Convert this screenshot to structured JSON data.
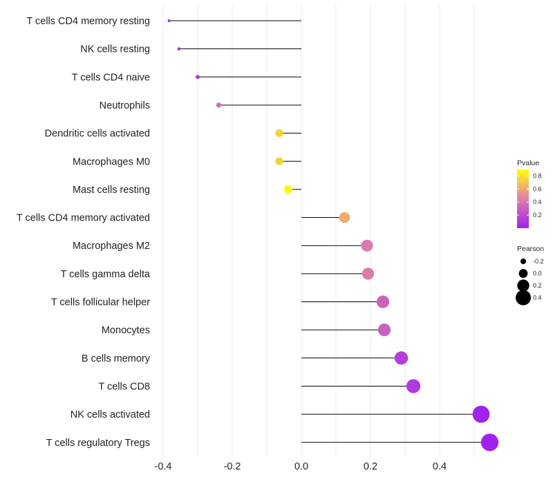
{
  "chart_data": {
    "type": "lollipop",
    "title": "",
    "xlabel": "",
    "ylabel": "",
    "xlim": [
      -0.42,
      0.56
    ],
    "x_ticks": [
      -0.4,
      -0.2,
      0.0,
      0.2,
      0.4
    ],
    "x_tick_labels": [
      "-0.4",
      "-0.2",
      "0.0",
      "0.2",
      "0.4"
    ],
    "baseline": 0.0,
    "grid": true,
    "categories": [
      "T cells CD4 memory resting",
      "NK cells resting",
      "T cells CD4 naive",
      "Neutrophils",
      "Dendritic cells activated",
      "Macrophages M0",
      "Mast cells resting",
      "T cells CD4 memory activated",
      "Macrophages M2",
      "T cells gamma delta",
      "T cells follicular helper",
      "Monocytes",
      "B cells memory",
      "T cells CD8",
      "NK cells activated",
      "T cells regulatory  Tregs"
    ],
    "pearson": [
      -0.383,
      -0.354,
      -0.3,
      -0.239,
      -0.064,
      -0.064,
      -0.038,
      0.125,
      0.19,
      0.193,
      0.236,
      0.24,
      0.289,
      0.324,
      0.52,
      0.545
    ],
    "pvalue": [
      0.03,
      0.04,
      0.1,
      0.35,
      0.75,
      0.75,
      0.88,
      0.62,
      0.42,
      0.42,
      0.31,
      0.3,
      0.15,
      0.12,
      0.004,
      0.002
    ],
    "legend_color": {
      "title": "Pvalue",
      "ticks": [
        0.2,
        0.4,
        0.6,
        0.8
      ],
      "tick_labels": [
        "0.2",
        "0.4",
        "0.6",
        "0.8"
      ],
      "range": [
        0.0,
        0.9
      ],
      "low_color": "#a020f0",
      "mid_color": "#e58aa0",
      "high_color": "#ffff00"
    },
    "legend_size": {
      "title": "Pearson",
      "values": [
        -0.2,
        0.0,
        0.2,
        0.4
      ],
      "labels": [
        "-0.2",
        "0.0",
        "0.2",
        "0.4"
      ]
    },
    "legend_position": "right"
  }
}
